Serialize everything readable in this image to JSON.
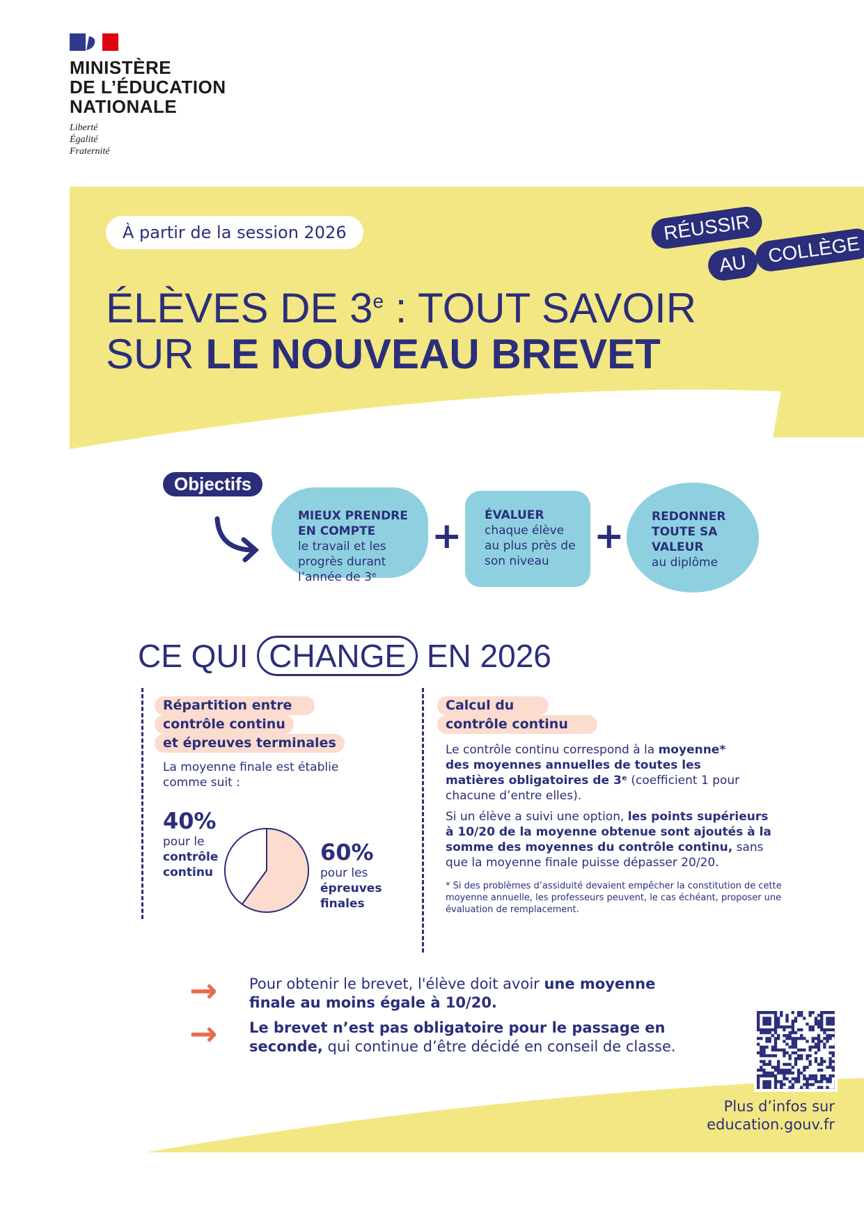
{
  "header": {
    "ministry_lines": [
      "MINISTÈRE",
      "DE L’ÉDUCATION",
      "NATIONALE"
    ],
    "motto": [
      "Liberté",
      "Égalité",
      "Fraternité"
    ]
  },
  "hero": {
    "session_pill": "À partir de la session 2026",
    "title_line1": "ÉLÈVES DE 3",
    "title_sup": "e",
    "title_line1_rest": " : TOUT SAVOIR",
    "title_line2_regular": "SUR ",
    "title_line2_bold": "LE NOUVEAU BREVET",
    "badge": [
      "RÉUSSIR",
      "AU",
      "COLLÈGE"
    ]
  },
  "objectives": {
    "tag": "Objectifs",
    "items": [
      {
        "bold": [
          "MIEUX PRENDRE",
          "EN COMPTE"
        ],
        "text": "le travail et les progrès durant l’année de 3ᵉ"
      },
      {
        "bold": [
          "ÉVALUER"
        ],
        "text": "chaque élève au plus près de son niveau"
      },
      {
        "bold": [
          "REDONNER",
          "TOUTE SA",
          "VALEUR"
        ],
        "text": "au diplôme"
      }
    ],
    "plus": "+"
  },
  "changes": {
    "title_pre": "CE QUI",
    "title_circled": "CHANGE",
    "title_post": "EN 2026",
    "left": {
      "heading": [
        "Répartition entre",
        "contrôle continu",
        "et épreuves terminales"
      ],
      "intro": "La moyenne finale est établie comme suit :",
      "chart_data": {
        "type": "pie",
        "values": [
          40,
          60
        ],
        "categories": [
          "contrôle continu",
          "épreuves finales"
        ],
        "colors": [
          "#ffffff",
          "#fbdccf"
        ]
      },
      "pct_a": "40%",
      "label_a_pre": "pour le",
      "label_a_bold": "contrôle continu",
      "pct_b": "60%",
      "label_b_pre": "pour les",
      "label_b_bold": "épreuves finales"
    },
    "right": {
      "heading": [
        "Calcul du",
        "contrôle continu"
      ],
      "p1": [
        "Le contrôle continu correspond à la ",
        "moyenne* des moyennes annuelles de toutes les matières obligatoires de 3ᵉ",
        " (coefficient 1 pour chacune d’entre elles)."
      ],
      "p2": [
        "Si un élève a suivi une option, ",
        "les points supérieurs à 10/20 de la moyenne obtenue sont ajoutés à la somme des moyennes du contrôle continu,",
        " sans que la moyenne finale puisse dépasser 20/20."
      ],
      "note": "* Si des problèmes d’assiduité devaient empêcher la constitution de cette moyenne annuelle, les professeurs peuvent, le cas échéant, proposer une évaluation de remplacement."
    }
  },
  "bottom": {
    "points": [
      [
        "Pour obtenir le brevet, l'élève doit avoir ",
        "une moyenne finale au moins égale à 10/20.",
        ""
      ],
      [
        "",
        "Le brevet n’est pas obligatoire pour le passage en seconde,",
        " qui continue d’être décidé en conseil de classe."
      ]
    ],
    "more_info": [
      "Plus d’infos sur",
      "education.gouv.fr"
    ]
  },
  "colors": {
    "navy": "#2b2e7a",
    "yellow": "#f3e783",
    "blue": "#8fd0e0",
    "peach": "#fbdccf",
    "orange": "#ea6b4e"
  }
}
